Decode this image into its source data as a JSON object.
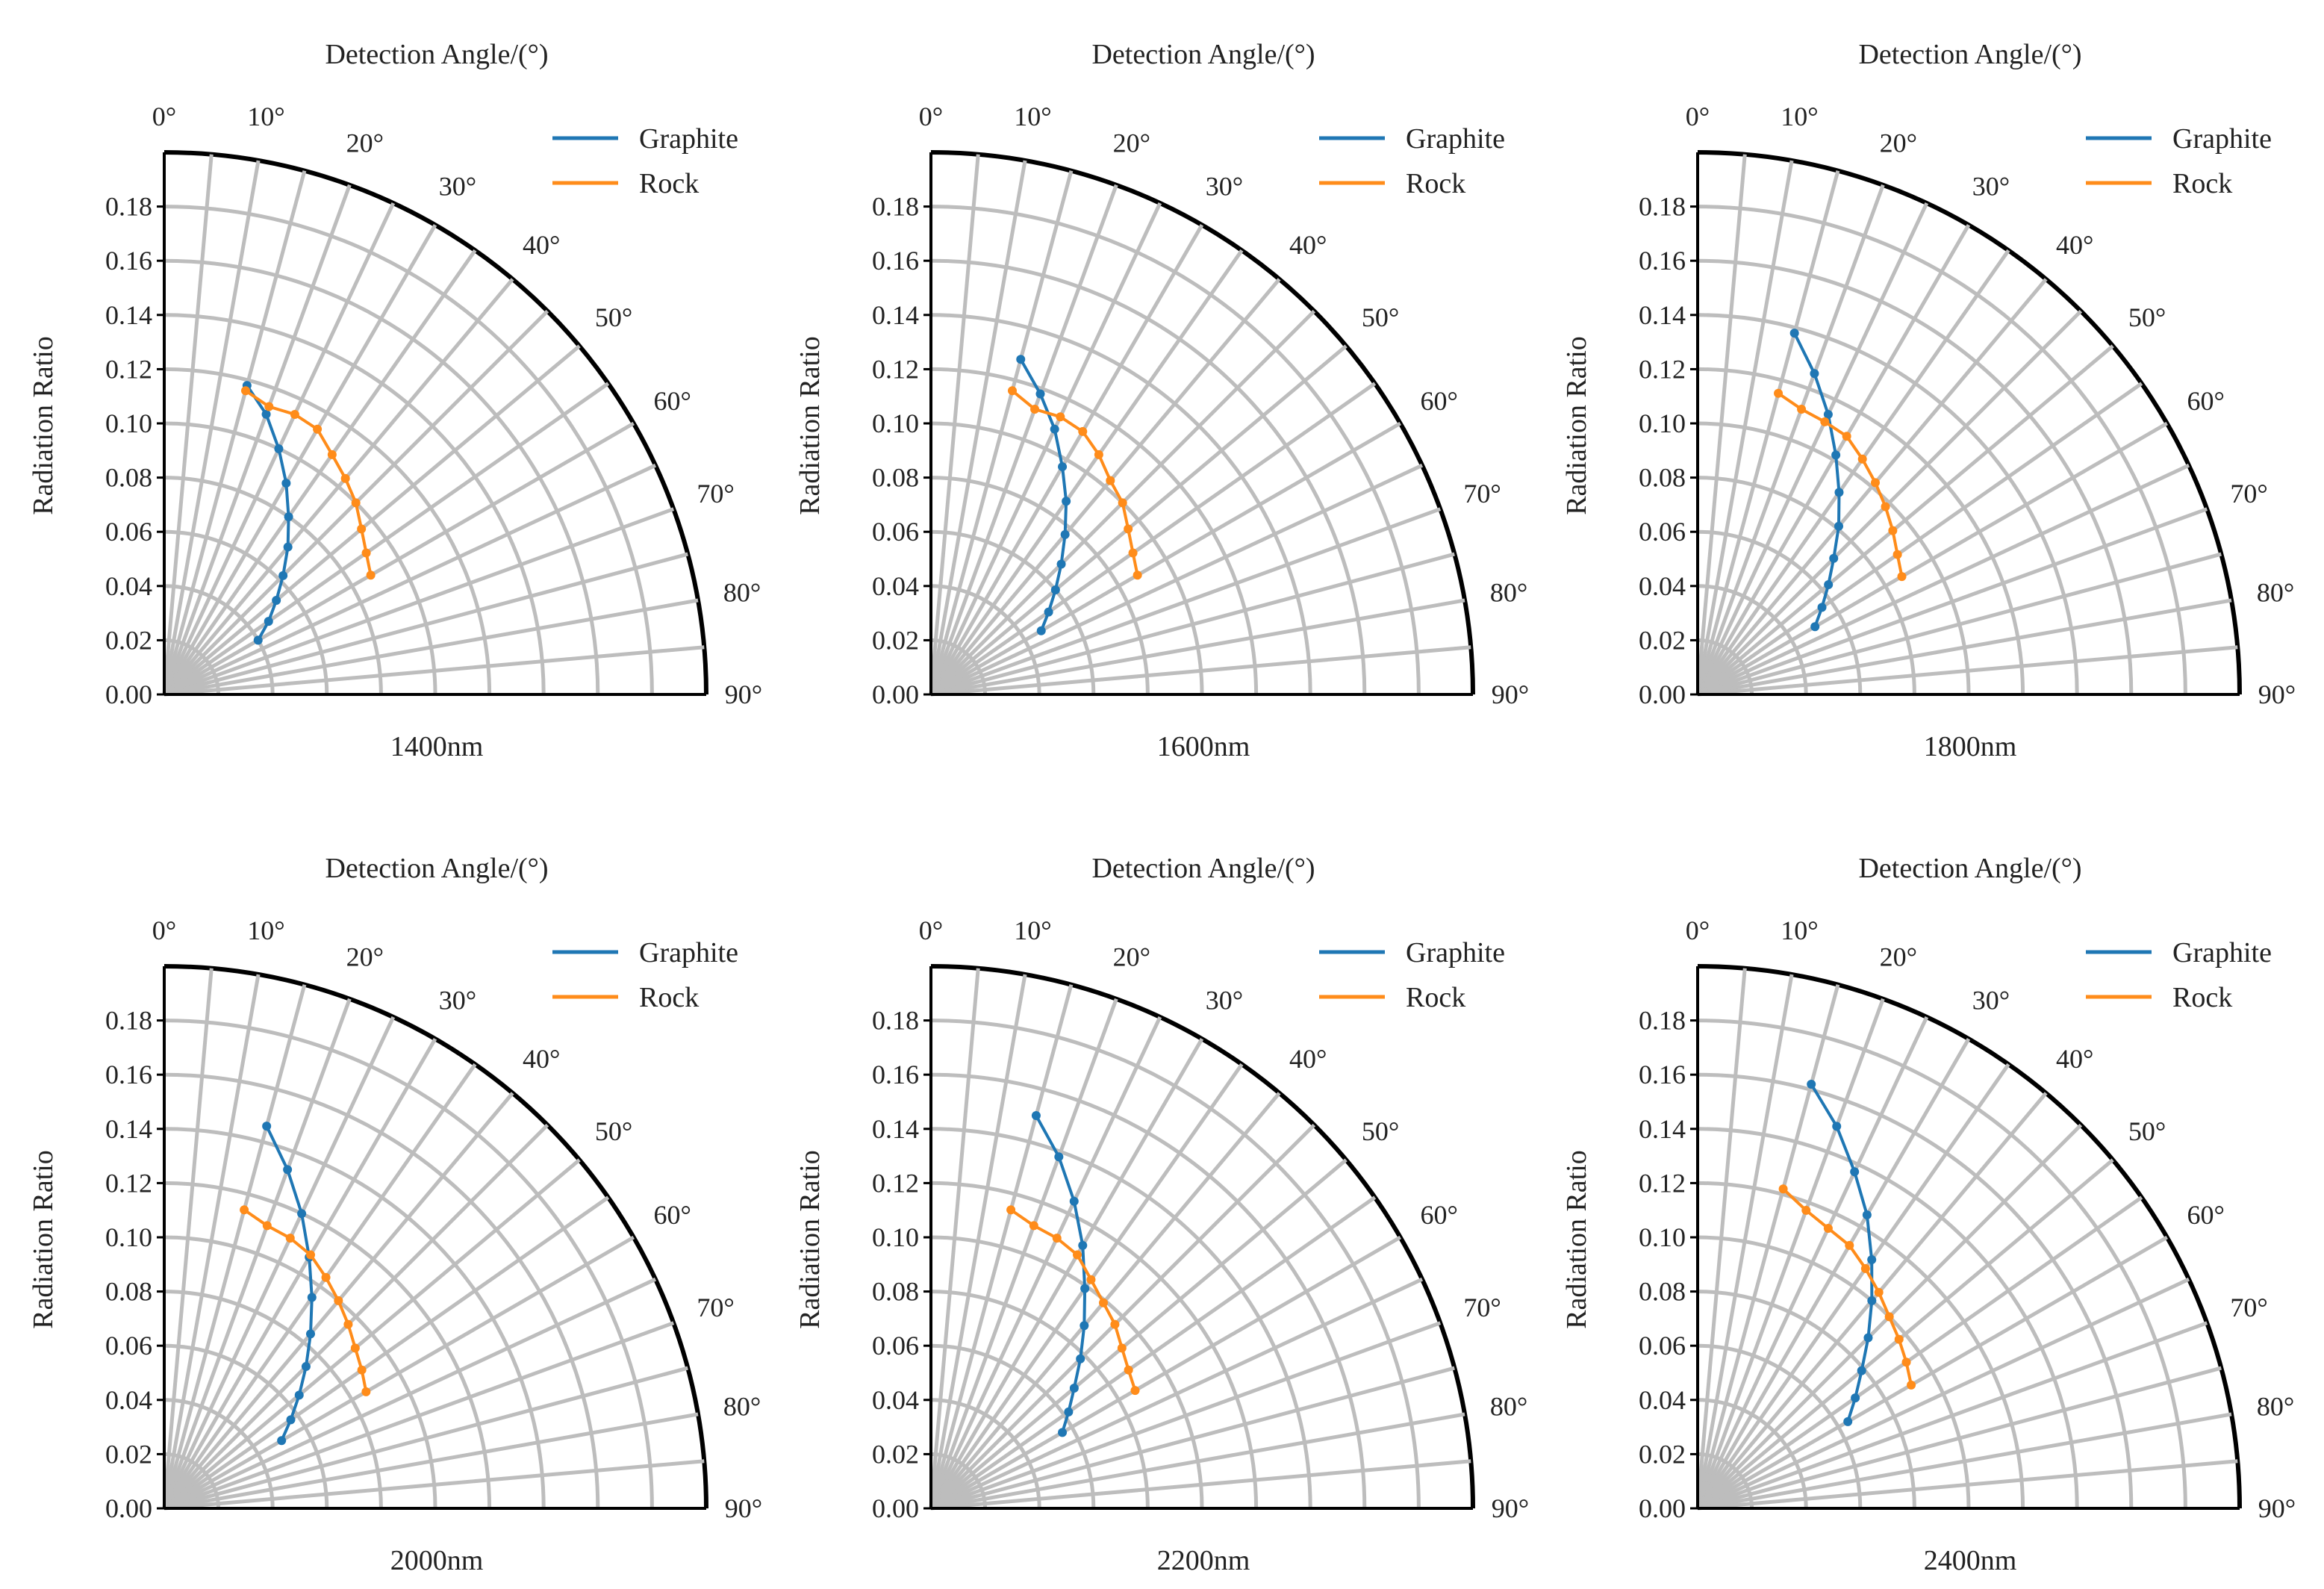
{
  "chart_data": [
    {
      "type": "line",
      "projection": "polar-quadrant",
      "title": "Detection Angle/(°)",
      "caption": "1400nm",
      "ylabel": "Radiation Ratio",
      "angle_ticks": [
        "0°",
        "10°",
        "20°",
        "30°",
        "40°",
        "50°",
        "60°",
        "70°",
        "80°",
        "90°"
      ],
      "radial_ticks": [
        "0.00",
        "0.02",
        "0.04",
        "0.06",
        "0.08",
        "0.10",
        "0.12",
        "0.14",
        "0.16",
        "0.18"
      ],
      "rlim": [
        0,
        0.2
      ],
      "thetalim": [
        0,
        90
      ],
      "legend_position": "top-right",
      "series": [
        {
          "name": "Graphite",
          "color": "#1f77b4",
          "theta": [
            15,
            20,
            25,
            30,
            35,
            40,
            45,
            50,
            55,
            60
          ],
          "r": [
            0.118,
            0.11,
            0.1,
            0.09,
            0.08,
            0.071,
            0.062,
            0.054,
            0.047,
            0.04
          ]
        },
        {
          "name": "Rock",
          "color": "#ff8c1a",
          "theta": [
            15,
            20,
            25,
            30,
            35,
            40,
            45,
            50,
            55,
            60
          ],
          "r": [
            0.116,
            0.113,
            0.114,
            0.113,
            0.108,
            0.104,
            0.1,
            0.095,
            0.091,
            0.088
          ]
        }
      ]
    },
    {
      "type": "line",
      "projection": "polar-quadrant",
      "title": "Detection Angle/(°)",
      "caption": "1600nm",
      "ylabel": "Radiation Ratio",
      "angle_ticks": [
        "0°",
        "10°",
        "20°",
        "30°",
        "40°",
        "50°",
        "60°",
        "70°",
        "80°",
        "90°"
      ],
      "radial_ticks": [
        "0.00",
        "0.02",
        "0.04",
        "0.06",
        "0.08",
        "0.10",
        "0.12",
        "0.14",
        "0.16",
        "0.18"
      ],
      "rlim": [
        0,
        0.2
      ],
      "thetalim": [
        0,
        90
      ],
      "legend_position": "top-right",
      "series": [
        {
          "name": "Graphite",
          "color": "#1f77b4",
          "theta": [
            15,
            20,
            25,
            30,
            35,
            40,
            45,
            50,
            55,
            60
          ],
          "r": [
            0.128,
            0.118,
            0.108,
            0.097,
            0.087,
            0.077,
            0.068,
            0.06,
            0.053,
            0.047
          ]
        },
        {
          "name": "Rock",
          "color": "#ff8c1a",
          "theta": [
            15,
            20,
            25,
            30,
            35,
            40,
            45,
            50,
            55,
            60
          ],
          "r": [
            0.116,
            0.112,
            0.113,
            0.112,
            0.108,
            0.103,
            0.1,
            0.095,
            0.091,
            0.088
          ]
        }
      ]
    },
    {
      "type": "line",
      "projection": "polar-quadrant",
      "title": "Detection Angle/(°)",
      "caption": "1800nm",
      "ylabel": "Radiation Ratio",
      "angle_ticks": [
        "0°",
        "10°",
        "20°",
        "30°",
        "40°",
        "50°",
        "60°",
        "70°",
        "80°",
        "90°"
      ],
      "radial_ticks": [
        "0.00",
        "0.02",
        "0.04",
        "0.06",
        "0.08",
        "0.10",
        "0.12",
        "0.14",
        "0.16",
        "0.18"
      ],
      "rlim": [
        0,
        0.2
      ],
      "thetalim": [
        0,
        90
      ],
      "legend_position": "top-right",
      "series": [
        {
          "name": "Graphite",
          "color": "#1f77b4",
          "theta": [
            15,
            20,
            25,
            30,
            35,
            40,
            45,
            50,
            55,
            60
          ],
          "r": [
            0.138,
            0.126,
            0.114,
            0.102,
            0.091,
            0.081,
            0.071,
            0.063,
            0.056,
            0.05
          ]
        },
        {
          "name": "Rock",
          "color": "#ff8c1a",
          "theta": [
            15,
            20,
            25,
            30,
            35,
            40,
            45,
            50,
            55,
            60
          ],
          "r": [
            0.115,
            0.112,
            0.111,
            0.11,
            0.106,
            0.102,
            0.098,
            0.094,
            0.09,
            0.087
          ]
        }
      ]
    },
    {
      "type": "line",
      "projection": "polar-quadrant",
      "title": "Detection Angle/(°)",
      "caption": "2000nm",
      "ylabel": "Radiation Ratio",
      "angle_ticks": [
        "0°",
        "10°",
        "20°",
        "30°",
        "40°",
        "50°",
        "60°",
        "70°",
        "80°",
        "90°"
      ],
      "radial_ticks": [
        "0.00",
        "0.02",
        "0.04",
        "0.06",
        "0.08",
        "0.10",
        "0.12",
        "0.14",
        "0.16",
        "0.18"
      ],
      "rlim": [
        0,
        0.2
      ],
      "thetalim": [
        0,
        90
      ],
      "legend_position": "top-right",
      "series": [
        {
          "name": "Graphite",
          "color": "#1f77b4",
          "theta": [
            15,
            20,
            25,
            30,
            35,
            40,
            45,
            50,
            55,
            60
          ],
          "r": [
            0.146,
            0.133,
            0.12,
            0.107,
            0.095,
            0.084,
            0.074,
            0.065,
            0.057,
            0.05
          ]
        },
        {
          "name": "Rock",
          "color": "#ff8c1a",
          "theta": [
            15,
            20,
            25,
            30,
            35,
            40,
            45,
            50,
            55,
            60
          ],
          "r": [
            0.114,
            0.111,
            0.11,
            0.108,
            0.104,
            0.1,
            0.096,
            0.092,
            0.089,
            0.086
          ]
        }
      ]
    },
    {
      "type": "line",
      "projection": "polar-quadrant",
      "title": "Detection Angle/(°)",
      "caption": "2200nm",
      "ylabel": "Radiation Ratio",
      "angle_ticks": [
        "0°",
        "10°",
        "20°",
        "30°",
        "40°",
        "50°",
        "60°",
        "70°",
        "80°",
        "90°"
      ],
      "radial_ticks": [
        "0.00",
        "0.02",
        "0.04",
        "0.06",
        "0.08",
        "0.10",
        "0.12",
        "0.14",
        "0.16",
        "0.18"
      ],
      "rlim": [
        0,
        0.2
      ],
      "thetalim": [
        0,
        90
      ],
      "legend_position": "top-right",
      "series": [
        {
          "name": "Graphite",
          "color": "#1f77b4",
          "theta": [
            15,
            20,
            25,
            30,
            35,
            40,
            45,
            50,
            55,
            60
          ],
          "r": [
            0.15,
            0.138,
            0.125,
            0.112,
            0.099,
            0.088,
            0.078,
            0.069,
            0.062,
            0.056
          ]
        },
        {
          "name": "Rock",
          "color": "#ff8c1a",
          "theta": [
            15,
            20,
            25,
            30,
            35,
            40,
            45,
            50,
            55,
            60
          ],
          "r": [
            0.114,
            0.111,
            0.11,
            0.108,
            0.103,
            0.099,
            0.096,
            0.092,
            0.089,
            0.087
          ]
        }
      ]
    },
    {
      "type": "line",
      "projection": "polar-quadrant",
      "title": "Detection Angle/(°)",
      "caption": "2400nm",
      "ylabel": "Radiation Ratio",
      "angle_ticks": [
        "0°",
        "10°",
        "20°",
        "30°",
        "40°",
        "50°",
        "60°",
        "70°",
        "80°",
        "90°"
      ],
      "radial_ticks": [
        "0.00",
        "0.02",
        "0.04",
        "0.06",
        "0.08",
        "0.10",
        "0.12",
        "0.14",
        "0.16",
        "0.18"
      ],
      "rlim": [
        0,
        0.2
      ],
      "thetalim": [
        0,
        90
      ],
      "legend_position": "top-right",
      "series": [
        {
          "name": "Graphite",
          "color": "#1f77b4",
          "theta": [
            15,
            20,
            25,
            30,
            35,
            40,
            45,
            50,
            55,
            60
          ],
          "r": [
            0.162,
            0.15,
            0.137,
            0.125,
            0.112,
            0.1,
            0.089,
            0.079,
            0.071,
            0.064
          ]
        },
        {
          "name": "Rock",
          "color": "#ff8c1a",
          "theta": [
            15,
            20,
            25,
            30,
            35,
            40,
            45,
            50,
            55,
            60
          ],
          "r": [
            0.122,
            0.117,
            0.114,
            0.112,
            0.108,
            0.104,
            0.1,
            0.097,
            0.094,
            0.091
          ]
        }
      ]
    }
  ]
}
